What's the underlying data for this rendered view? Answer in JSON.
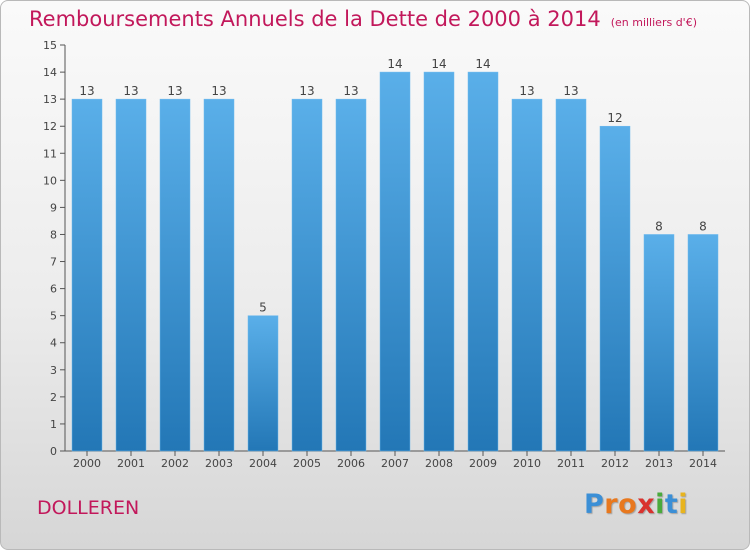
{
  "title": "Remboursements Annuels de la Dette de 2000 à 2014",
  "unit": "(en milliers d'€)",
  "commune": "DOLLEREN",
  "logo": {
    "letters": [
      "P",
      "r",
      "o",
      "x",
      "i",
      "t",
      "i"
    ],
    "colors": [
      "#3b8fd6",
      "#e8781e",
      "#e8781e",
      "#d9322e",
      "#4aaa3c",
      "#3b8fd6",
      "#e8b41e"
    ]
  },
  "colors": {
    "title": "#c2185b",
    "bar_light": "#5aafe9",
    "bar_dark": "#2377b6",
    "axis": "#555555"
  },
  "chart_data": {
    "type": "bar",
    "title": "Remboursements Annuels de la Dette de 2000 à 2014",
    "xlabel": "",
    "ylabel": "",
    "categories": [
      "2000",
      "2001",
      "2002",
      "2003",
      "2004",
      "2005",
      "2006",
      "2007",
      "2008",
      "2009",
      "2010",
      "2011",
      "2012",
      "2013",
      "2014"
    ],
    "values": [
      13,
      13,
      13,
      13,
      5,
      13,
      13,
      14,
      14,
      14,
      13,
      13,
      12,
      8,
      8
    ],
    "ylim": [
      0,
      15
    ],
    "yticks": [
      0,
      1,
      2,
      3,
      4,
      5,
      6,
      7,
      8,
      9,
      10,
      11,
      12,
      13,
      14,
      15
    ],
    "grid": false,
    "data_labels": true
  }
}
